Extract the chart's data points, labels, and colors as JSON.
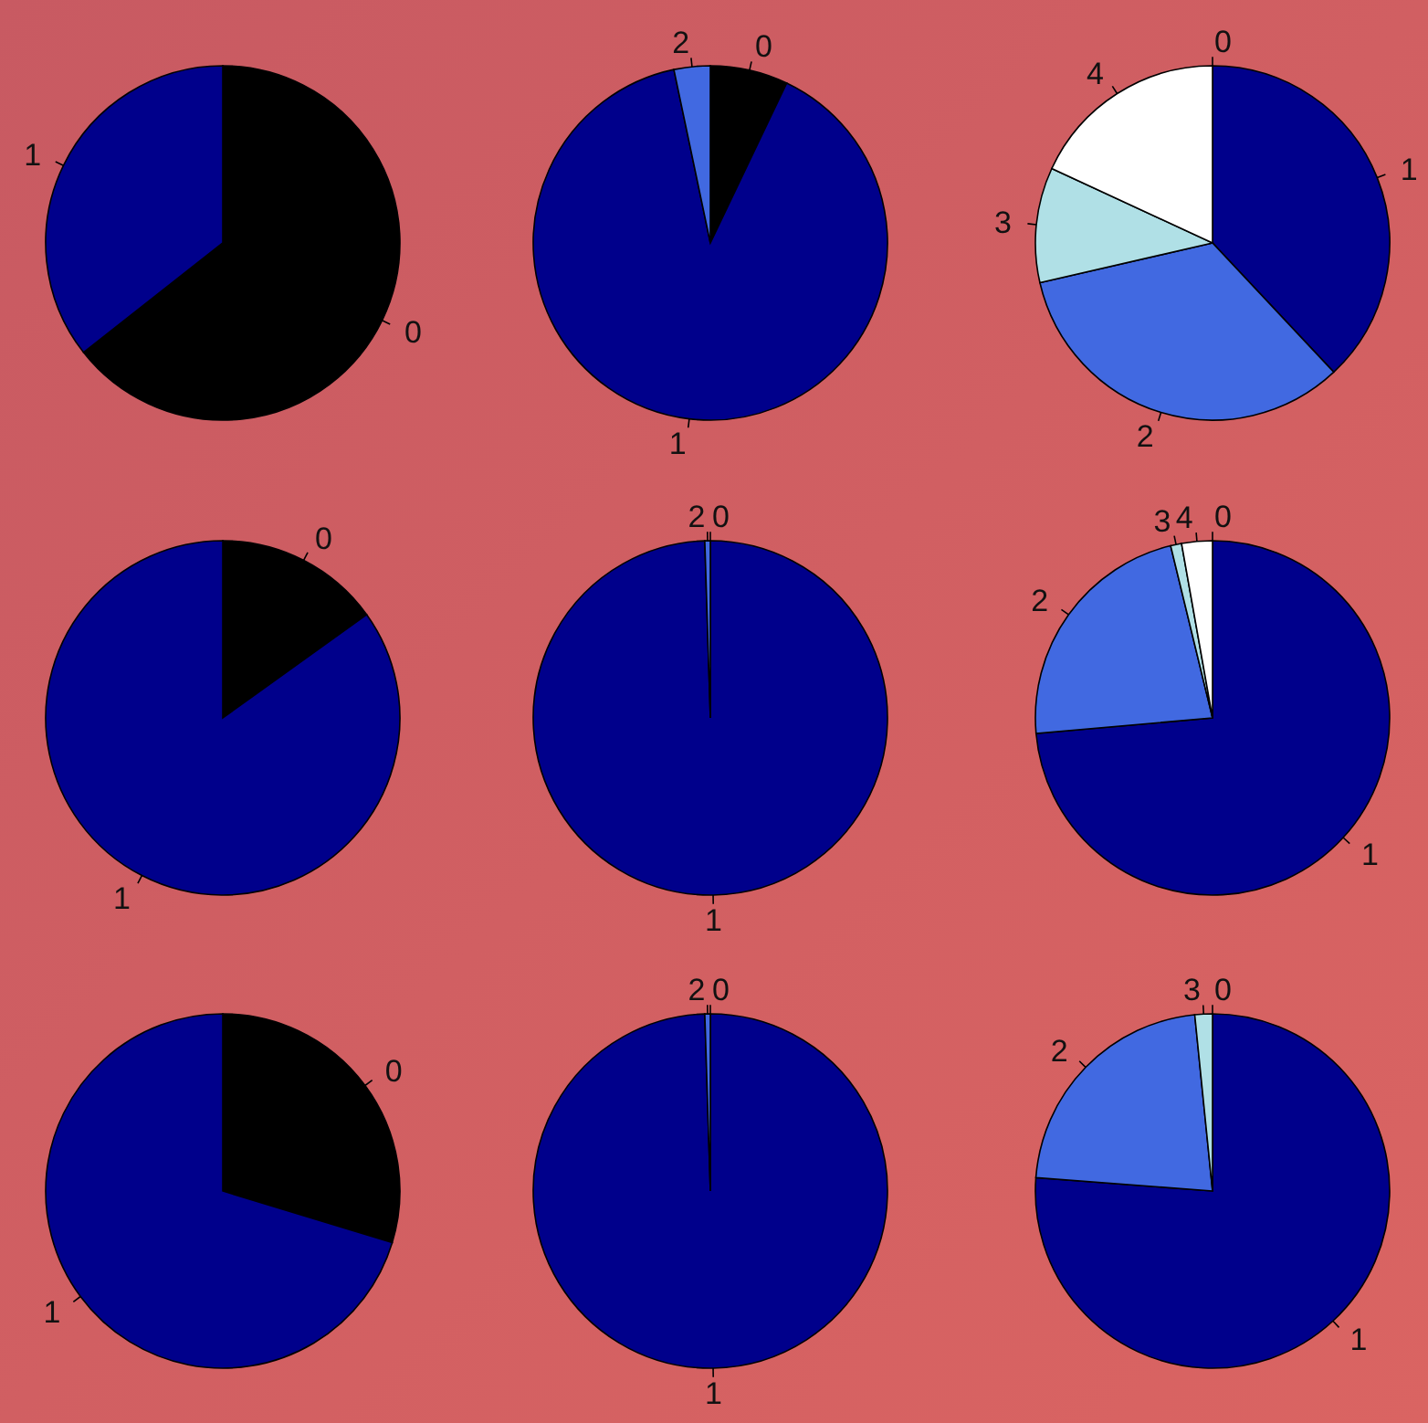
{
  "chart_data": [
    {
      "type": "pie",
      "categories": [
        "0",
        "1"
      ],
      "values": [
        64.4,
        35.6
      ],
      "colors": [
        "#000000",
        "#00008b"
      ]
    },
    {
      "type": "pie",
      "categories": [
        "0",
        "1",
        "2"
      ],
      "values": [
        7.1,
        89.6,
        3.3
      ],
      "colors": [
        "#000000",
        "#00008b",
        "#4169e1"
      ]
    },
    {
      "type": "pie",
      "categories": [
        "0",
        "1",
        "2",
        "3",
        "4"
      ],
      "values": [
        0,
        38,
        33.4,
        10.5,
        18.1
      ],
      "colors": [
        "#000000",
        "#00008b",
        "#4169e1",
        "#b0e0e6",
        "#ffffff"
      ]
    },
    {
      "type": "pie",
      "categories": [
        "0",
        "1"
      ],
      "values": [
        15.1,
        84.9
      ],
      "colors": [
        "#000000",
        "#00008b"
      ]
    },
    {
      "type": "pie",
      "categories": [
        "0",
        "1",
        "2"
      ],
      "values": [
        0,
        99.5,
        0.5
      ],
      "colors": [
        "#000000",
        "#00008b",
        "#4169e1"
      ]
    },
    {
      "type": "pie",
      "categories": [
        "0",
        "1",
        "2",
        "3",
        "4"
      ],
      "values": [
        0,
        73.6,
        22.6,
        1,
        2.8
      ],
      "colors": [
        "#000000",
        "#00008b",
        "#4169e1",
        "#b0e0e6",
        "#ffffff"
      ]
    },
    {
      "type": "pie",
      "categories": [
        "0",
        "1"
      ],
      "values": [
        29.7,
        70.3
      ],
      "colors": [
        "#000000",
        "#00008b"
      ]
    },
    {
      "type": "pie",
      "categories": [
        "0",
        "1",
        "2"
      ],
      "values": [
        0,
        99.5,
        0.5
      ],
      "colors": [
        "#000000",
        "#00008b",
        "#4169e1"
      ]
    },
    {
      "type": "pie",
      "categories": [
        "0",
        "1",
        "2",
        "3"
      ],
      "values": [
        0,
        76.2,
        22.2,
        1.6
      ],
      "colors": [
        "#000000",
        "#00008b",
        "#4169e1",
        "#b0e0e6"
      ]
    }
  ]
}
